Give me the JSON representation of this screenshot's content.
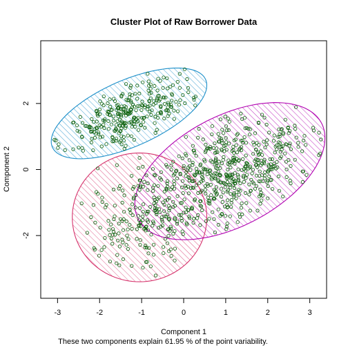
{
  "chart_data": {
    "type": "scatter",
    "title": "Cluster Plot of Raw Borrower Data",
    "xlabel": "Component 1",
    "ylabel": "Component 2",
    "subtitle": "These two components explain 61.95 % of the point variability.",
    "xlim": [
      -3.4,
      3.4
    ],
    "ylim": [
      -3.9,
      3.9
    ],
    "xticks": [
      "-3",
      "-2",
      "-1",
      "0",
      "1",
      "2",
      "3"
    ],
    "yticks": [
      "-2",
      "0",
      "2"
    ],
    "grid": false,
    "legend": "none",
    "colors": {
      "points": "#0a5f0a",
      "cluster_blue": "#1a8ec9",
      "cluster_red": "#d6336c",
      "cluster_magenta": "#b000b0"
    },
    "clusters": [
      {
        "cluster": 1,
        "color": "#1a8ec9",
        "center": [
          -1.3,
          1.7
        ],
        "axis_a": 2.1,
        "axis_b": 0.95,
        "angle_deg": 32,
        "n_points": 300
      },
      {
        "cluster": 2,
        "color": "#d6336c",
        "center": [
          -1.05,
          -1.45
        ],
        "axis_a": 1.6,
        "axis_b": 1.95,
        "angle_deg": 0,
        "n_points": 180
      },
      {
        "cluster": 3,
        "color": "#b000b0",
        "center": [
          1.1,
          -0.05
        ],
        "axis_a": 2.65,
        "axis_b": 1.55,
        "angle_deg": 40,
        "n_points": 550
      }
    ]
  }
}
